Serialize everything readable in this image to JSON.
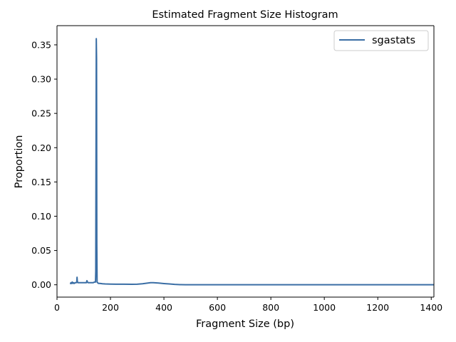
{
  "chart_data": {
    "type": "line",
    "title": "Estimated Fragment Size Histogram",
    "xlabel": "Fragment Size (bp)",
    "ylabel": "Proportion",
    "xlim": [
      0,
      1410
    ],
    "ylim": [
      -0.018,
      0.378
    ],
    "xticks": [
      0,
      200,
      400,
      600,
      800,
      1000,
      1200,
      1400
    ],
    "yticks": [
      0.0,
      0.05,
      0.1,
      0.15,
      0.2,
      0.25,
      0.3,
      0.35
    ],
    "ytick_labels": [
      "0.00",
      "0.05",
      "0.10",
      "0.15",
      "0.20",
      "0.25",
      "0.30",
      "0.35"
    ],
    "grid": false,
    "legend": {
      "placement": "top-right",
      "entries": [
        "sgastats"
      ]
    },
    "colors": {
      "series": "#3a6ea5"
    },
    "series": [
      {
        "name": "sgastats",
        "x": [
          50,
          52,
          55,
          57,
          60,
          62,
          65,
          68,
          70,
          72,
          74,
          75,
          76,
          78,
          80,
          85,
          90,
          95,
          100,
          105,
          108,
          110,
          112,
          114,
          116,
          120,
          125,
          130,
          135,
          140,
          144,
          145,
          146,
          147,
          148,
          149,
          150,
          152,
          155,
          160,
          170,
          180,
          200,
          220,
          250,
          280,
          300,
          320,
          340,
          350,
          360,
          370,
          380,
          400,
          420,
          440,
          460,
          480,
          500,
          600,
          800,
          1000,
          1200,
          1410
        ],
        "values": [
          0.001,
          0.003,
          0.002,
          0.004,
          0.002,
          0.003,
          0.002,
          0.003,
          0.003,
          0.003,
          0.004,
          0.011,
          0.005,
          0.003,
          0.003,
          0.003,
          0.003,
          0.003,
          0.003,
          0.003,
          0.003,
          0.003,
          0.006,
          0.004,
          0.003,
          0.003,
          0.003,
          0.003,
          0.003,
          0.004,
          0.004,
          0.02,
          0.2,
          0.359,
          0.33,
          0.06,
          0.004,
          0.003,
          0.002,
          0.002,
          0.0015,
          0.0012,
          0.001,
          0.0009,
          0.0008,
          0.0007,
          0.0009,
          0.0015,
          0.0025,
          0.003,
          0.003,
          0.0028,
          0.0025,
          0.0018,
          0.0012,
          0.0006,
          0.0002,
          0.0001,
          0.0001,
          0.0,
          0.0,
          0.0,
          0.0,
          0.0
        ]
      }
    ]
  }
}
